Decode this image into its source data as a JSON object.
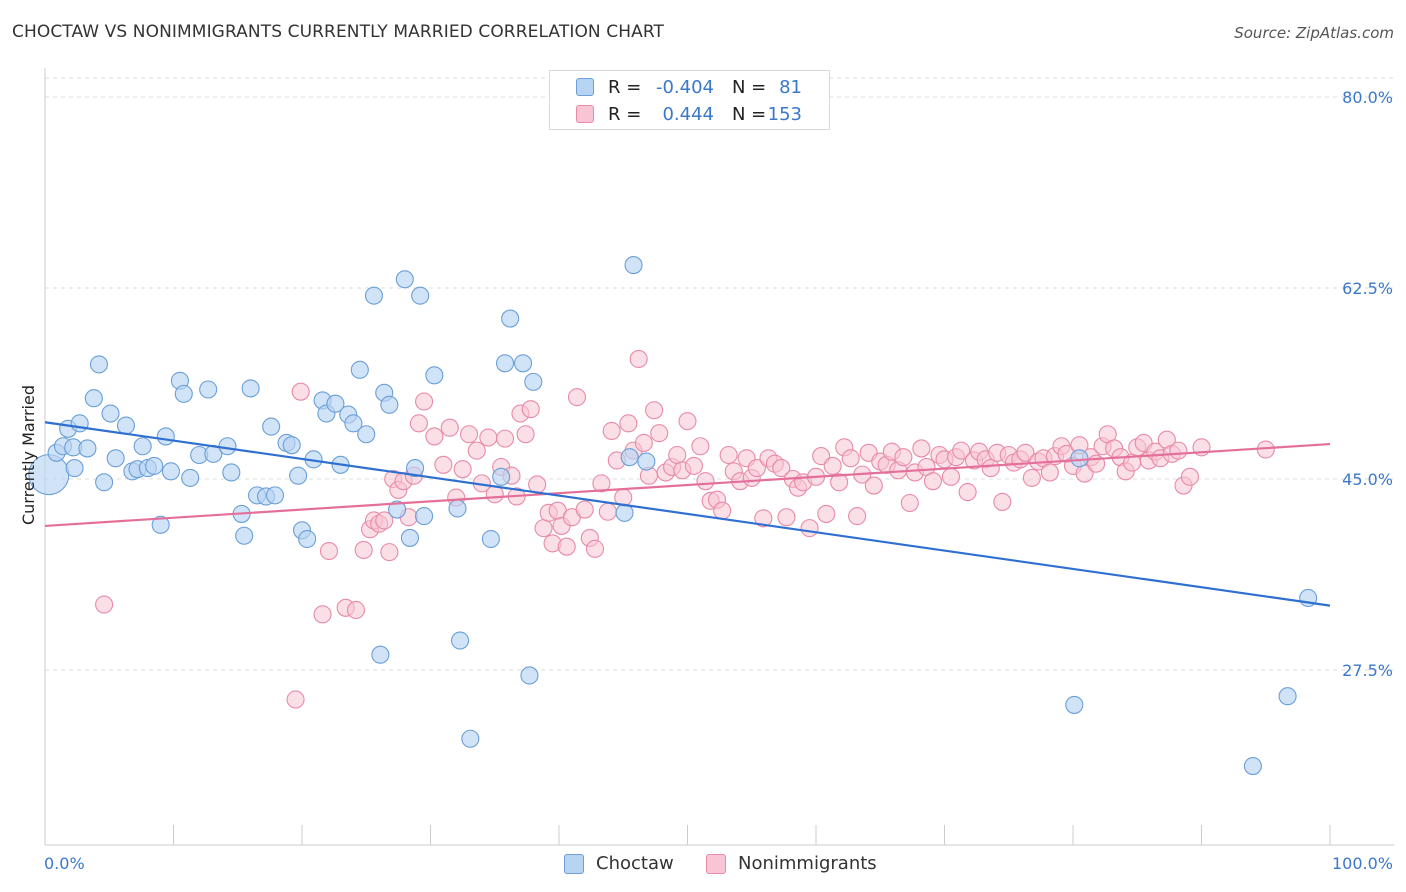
{
  "title": "CHOCTAW VS NONIMMIGRANTS CURRENTLY MARRIED CORRELATION CHART",
  "source": "Source: ZipAtlas.com",
  "colors": {
    "choctaw_fill": "#b8d4f3",
    "choctaw_stroke": "#6a9fd8",
    "choctaw_line": "#2e6fd1",
    "nonimm_fill": "#f7c5d4",
    "nonimm_stroke": "#e88aa8",
    "nonimm_line": "#e4709a",
    "tick_text": "#3a78c9",
    "grid": "#dddddd"
  },
  "legend": {
    "rows": [
      {
        "r_label": "R =",
        "r_value": "-0.404",
        "n_label": "N =",
        "n_value": "81"
      },
      {
        "r_label": "R =",
        "r_value": "0.444",
        "n_label": "N =",
        "n_value": "153"
      }
    ]
  },
  "bottom_legend": [
    "Choctaw",
    "Nonimmigrants"
  ],
  "chart_data": {
    "type": "scatter",
    "title": "CHOCTAW VS NONIMMIGRANTS CURRENTLY MARRIED CORRELATION CHART",
    "xlabel": "",
    "ylabel": "Currently Married",
    "xlim": [
      0,
      100
    ],
    "ylim": [
      11,
      82
    ],
    "x_tick_labels": [
      "0.0%",
      "100.0%"
    ],
    "y_ticks": [
      27.5,
      45.0,
      62.5,
      80.0
    ],
    "y_tick_labels": [
      "27.5%",
      "45.0%",
      "62.5%",
      "80.0%"
    ],
    "grid": "horizontal dashed",
    "legend_position": "top-center",
    "series": [
      {
        "name": "Choctaw",
        "r": -0.404,
        "n": 81,
        "trend": [
          [
            0,
            50.2
          ],
          [
            100,
            33.4
          ]
        ],
        "points": [
          [
            0.3,
            45.4
          ],
          [
            0.9,
            47.4
          ],
          [
            1.4,
            48.0
          ],
          [
            2.2,
            47.9
          ],
          [
            1.8,
            49.6
          ],
          [
            2.7,
            50.1
          ],
          [
            2.3,
            46.0
          ],
          [
            3.3,
            47.8
          ],
          [
            3.8,
            52.4
          ],
          [
            4.2,
            55.5
          ],
          [
            4.6,
            44.7
          ],
          [
            5.1,
            51.0
          ],
          [
            5.5,
            46.9
          ],
          [
            6.3,
            49.9
          ],
          [
            6.8,
            45.7
          ],
          [
            7.2,
            45.9
          ],
          [
            7.6,
            48.0
          ],
          [
            8.0,
            46.0
          ],
          [
            8.5,
            46.2
          ],
          [
            9.0,
            40.8
          ],
          [
            9.4,
            48.9
          ],
          [
            9.8,
            45.7
          ],
          [
            10.5,
            54.0
          ],
          [
            10.8,
            52.8
          ],
          [
            11.3,
            45.1
          ],
          [
            12.0,
            47.2
          ],
          [
            12.7,
            53.2
          ],
          [
            13.1,
            47.3
          ],
          [
            14.2,
            48.0
          ],
          [
            14.5,
            45.6
          ],
          [
            15.3,
            41.8
          ],
          [
            15.5,
            39.8
          ],
          [
            16.0,
            53.3
          ],
          [
            16.5,
            43.5
          ],
          [
            17.2,
            43.4
          ],
          [
            17.6,
            49.8
          ],
          [
            17.9,
            43.5
          ],
          [
            18.8,
            48.3
          ],
          [
            19.2,
            48.1
          ],
          [
            19.7,
            45.3
          ],
          [
            20.0,
            40.3
          ],
          [
            20.4,
            39.5
          ],
          [
            20.9,
            46.8
          ],
          [
            21.6,
            52.2
          ],
          [
            21.9,
            51.0
          ],
          [
            22.6,
            51.9
          ],
          [
            23.0,
            46.3
          ],
          [
            23.6,
            50.9
          ],
          [
            24.0,
            50.1
          ],
          [
            24.5,
            55.0
          ],
          [
            25.0,
            49.1
          ],
          [
            25.6,
            61.8
          ],
          [
            26.1,
            28.9
          ],
          [
            26.4,
            52.9
          ],
          [
            26.8,
            51.8
          ],
          [
            27.4,
            42.2
          ],
          [
            28.0,
            63.3
          ],
          [
            28.4,
            39.6
          ],
          [
            28.8,
            46.0
          ],
          [
            29.2,
            61.8
          ],
          [
            29.5,
            41.6
          ],
          [
            30.3,
            54.5
          ],
          [
            32.1,
            42.3
          ],
          [
            32.3,
            30.2
          ],
          [
            33.1,
            21.2
          ],
          [
            34.7,
            39.5
          ],
          [
            35.5,
            45.2
          ],
          [
            35.8,
            55.6
          ],
          [
            36.2,
            59.7
          ],
          [
            37.2,
            55.6
          ],
          [
            37.7,
            27.0
          ],
          [
            38.0,
            53.9
          ],
          [
            45.1,
            41.9
          ],
          [
            45.5,
            47.0
          ],
          [
            45.8,
            64.6
          ],
          [
            46.8,
            46.6
          ],
          [
            80.1,
            24.3
          ],
          [
            80.5,
            46.9
          ],
          [
            94.0,
            18.7
          ],
          [
            96.7,
            25.1
          ],
          [
            98.3,
            34.1
          ]
        ]
      },
      {
        "name": "Nonimmigrants",
        "r": 0.444,
        "n": 153,
        "trend": [
          [
            0,
            40.7
          ],
          [
            100,
            48.2
          ]
        ],
        "points": [
          [
            4.6,
            33.5
          ],
          [
            19.5,
            24.8
          ],
          [
            19.9,
            53.0
          ],
          [
            21.6,
            32.6
          ],
          [
            22.1,
            38.4
          ],
          [
            23.4,
            33.2
          ],
          [
            24.2,
            33.0
          ],
          [
            24.8,
            38.5
          ],
          [
            25.3,
            40.4
          ],
          [
            25.6,
            41.2
          ],
          [
            26.0,
            40.9
          ],
          [
            26.4,
            41.2
          ],
          [
            26.8,
            38.3
          ],
          [
            27.1,
            45.0
          ],
          [
            27.5,
            44.0
          ],
          [
            27.9,
            44.8
          ],
          [
            28.3,
            41.5
          ],
          [
            28.7,
            45.3
          ],
          [
            29.1,
            50.1
          ],
          [
            29.5,
            52.1
          ],
          [
            30.3,
            48.9
          ],
          [
            31.0,
            46.3
          ],
          [
            31.5,
            49.7
          ],
          [
            32.0,
            43.3
          ],
          [
            32.5,
            45.9
          ],
          [
            33.0,
            49.1
          ],
          [
            33.6,
            47.6
          ],
          [
            34.0,
            44.6
          ],
          [
            34.5,
            48.8
          ],
          [
            35.0,
            43.6
          ],
          [
            35.5,
            46.1
          ],
          [
            35.8,
            48.7
          ],
          [
            36.3,
            45.3
          ],
          [
            36.7,
            43.4
          ],
          [
            37.0,
            51.0
          ],
          [
            37.4,
            49.1
          ],
          [
            37.8,
            51.4
          ],
          [
            38.3,
            44.5
          ],
          [
            38.8,
            40.5
          ],
          [
            39.2,
            41.9
          ],
          [
            39.5,
            39.1
          ],
          [
            39.9,
            42.1
          ],
          [
            40.2,
            40.7
          ],
          [
            40.6,
            38.8
          ],
          [
            41.0,
            41.5
          ],
          [
            41.4,
            52.5
          ],
          [
            42.0,
            42.2
          ],
          [
            42.4,
            39.6
          ],
          [
            42.8,
            38.6
          ],
          [
            43.3,
            44.6
          ],
          [
            43.8,
            42.0
          ],
          [
            44.1,
            49.4
          ],
          [
            44.5,
            46.7
          ],
          [
            45.0,
            43.3
          ],
          [
            45.4,
            50.1
          ],
          [
            45.8,
            47.6
          ],
          [
            46.2,
            56.0
          ],
          [
            46.6,
            48.3
          ],
          [
            47.0,
            45.3
          ],
          [
            47.4,
            51.3
          ],
          [
            47.8,
            49.2
          ],
          [
            48.3,
            45.6
          ],
          [
            48.8,
            46.1
          ],
          [
            49.2,
            47.2
          ],
          [
            49.6,
            45.8
          ],
          [
            50.0,
            50.3
          ],
          [
            50.5,
            46.2
          ],
          [
            51.0,
            48.0
          ],
          [
            51.4,
            44.8
          ],
          [
            51.8,
            43.0
          ],
          [
            52.3,
            43.1
          ],
          [
            52.7,
            42.1
          ],
          [
            53.2,
            47.2
          ],
          [
            53.6,
            45.7
          ],
          [
            54.1,
            44.8
          ],
          [
            54.6,
            46.9
          ],
          [
            55.0,
            45.1
          ],
          [
            55.4,
            46.0
          ],
          [
            55.9,
            41.4
          ],
          [
            56.3,
            46.9
          ],
          [
            56.8,
            46.4
          ],
          [
            57.3,
            46.0
          ],
          [
            57.7,
            41.5
          ],
          [
            58.2,
            45.0
          ],
          [
            58.6,
            44.2
          ],
          [
            59.0,
            44.7
          ],
          [
            59.5,
            40.5
          ],
          [
            60.0,
            45.2
          ],
          [
            60.4,
            47.1
          ],
          [
            60.8,
            41.8
          ],
          [
            61.3,
            46.2
          ],
          [
            61.8,
            44.7
          ],
          [
            62.2,
            47.9
          ],
          [
            62.7,
            46.9
          ],
          [
            63.2,
            41.6
          ],
          [
            63.6,
            45.4
          ],
          [
            64.1,
            47.4
          ],
          [
            64.5,
            44.4
          ],
          [
            65.0,
            46.6
          ],
          [
            65.5,
            46.3
          ],
          [
            65.9,
            47.5
          ],
          [
            66.4,
            45.8
          ],
          [
            66.8,
            47.0
          ],
          [
            67.3,
            42.8
          ],
          [
            67.7,
            45.6
          ],
          [
            68.2,
            47.8
          ],
          [
            68.6,
            46.1
          ],
          [
            69.1,
            44.8
          ],
          [
            69.6,
            47.2
          ],
          [
            70.0,
            46.8
          ],
          [
            70.5,
            45.2
          ],
          [
            70.9,
            47.0
          ],
          [
            71.3,
            47.6
          ],
          [
            71.8,
            43.8
          ],
          [
            72.3,
            46.7
          ],
          [
            72.7,
            47.5
          ],
          [
            73.2,
            46.8
          ],
          [
            73.6,
            46.0
          ],
          [
            74.1,
            47.4
          ],
          [
            74.5,
            42.9
          ],
          [
            75.0,
            47.2
          ],
          [
            75.4,
            46.5
          ],
          [
            75.9,
            46.8
          ],
          [
            76.3,
            47.4
          ],
          [
            76.8,
            45.1
          ],
          [
            77.3,
            46.6
          ],
          [
            77.7,
            46.9
          ],
          [
            78.2,
            45.6
          ],
          [
            78.6,
            47.1
          ],
          [
            79.1,
            48.0
          ],
          [
            79.5,
            47.3
          ],
          [
            80.0,
            46.2
          ],
          [
            80.5,
            48.1
          ],
          [
            80.9,
            45.5
          ],
          [
            81.4,
            47.0
          ],
          [
            81.8,
            46.4
          ],
          [
            82.3,
            48.0
          ],
          [
            82.7,
            49.1
          ],
          [
            83.2,
            47.8
          ],
          [
            83.7,
            47.0
          ],
          [
            84.1,
            45.7
          ],
          [
            84.6,
            46.5
          ],
          [
            85.0,
            47.9
          ],
          [
            85.5,
            48.3
          ],
          [
            85.9,
            46.7
          ],
          [
            86.4,
            47.5
          ],
          [
            86.8,
            46.9
          ],
          [
            87.3,
            48.6
          ],
          [
            87.7,
            47.3
          ],
          [
            88.2,
            47.6
          ],
          [
            88.6,
            44.4
          ],
          [
            89.1,
            45.2
          ],
          [
            90.0,
            47.9
          ],
          [
            95.0,
            47.7
          ]
        ]
      }
    ]
  }
}
